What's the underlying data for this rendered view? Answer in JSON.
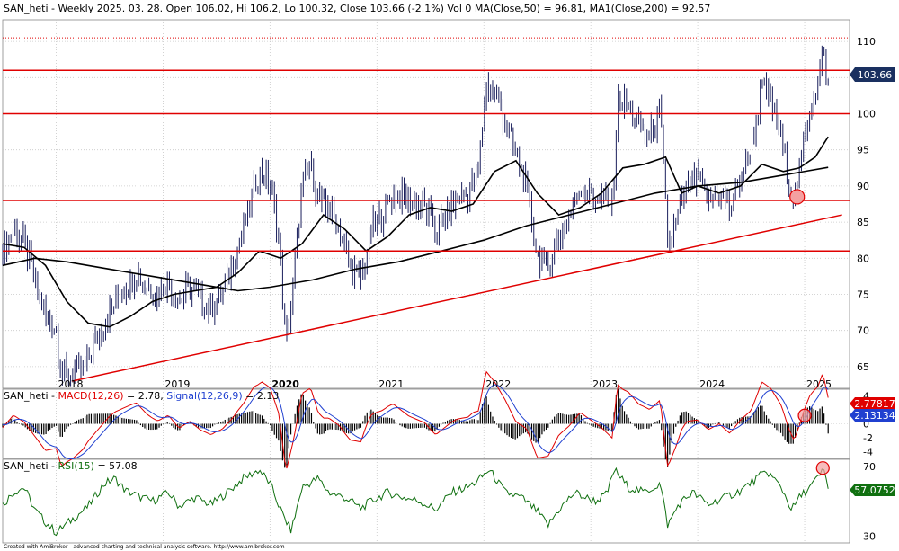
{
  "title": {
    "prefix": "SAN_heti - Weekly 2025. 03. 28. Open 106.02, Hi 106.2, Lo 100.32, Close 103.66 (-2.1%) Vol 0 ",
    "ma50": "MA(Close,50) = 96.81, ",
    "ma200": "MA1(Close,200) = 92.57"
  },
  "footer": "Created with AmiBroker - advanced charting and technical analysis software. http://www.amibroker.com",
  "colors": {
    "price": "#1a1f5c",
    "ma": "#000000",
    "hline": "#e00000",
    "trend": "#e00000",
    "macd": "#e00000",
    "signal": "#2040d0",
    "hist": "#000000",
    "rsi": "#107010",
    "grid": "#c8c8c8",
    "marker": "#f4a0a0"
  },
  "chart_data": [
    {
      "type": "line",
      "name": "price",
      "y_ticks": [
        65,
        70,
        75,
        80,
        85,
        90,
        95,
        100,
        105,
        110
      ],
      "x_ticks": [
        "2018",
        "2019",
        "2020",
        "2021",
        "2022",
        "2023",
        "2024",
        "2025"
      ],
      "last_value": "103.66",
      "x_start": 2017.5,
      "x_end": 2025.42,
      "ylim": [
        62,
        113
      ],
      "close_points": [
        [
          2017.5,
          81
        ],
        [
          2017.6,
          84
        ],
        [
          2017.7,
          82
        ],
        [
          2017.8,
          77
        ],
        [
          2017.9,
          72
        ],
        [
          2018.0,
          70
        ],
        [
          2018.05,
          64
        ],
        [
          2018.15,
          64
        ],
        [
          2018.25,
          65
        ],
        [
          2018.35,
          68
        ],
        [
          2018.45,
          71
        ],
        [
          2018.55,
          74
        ],
        [
          2018.65,
          76
        ],
        [
          2018.75,
          78
        ],
        [
          2018.85,
          76
        ],
        [
          2018.95,
          75
        ],
        [
          2019.05,
          77
        ],
        [
          2019.15,
          74
        ],
        [
          2019.25,
          76
        ],
        [
          2019.35,
          74
        ],
        [
          2019.45,
          73
        ],
        [
          2019.55,
          75
        ],
        [
          2019.65,
          79
        ],
        [
          2019.75,
          84
        ],
        [
          2019.85,
          90
        ],
        [
          2019.92,
          92
        ],
        [
          2020.0,
          90
        ],
        [
          2020.08,
          83
        ],
        [
          2020.15,
          68
        ],
        [
          2020.22,
          77
        ],
        [
          2020.3,
          90
        ],
        [
          2020.38,
          93
        ],
        [
          2020.45,
          88
        ],
        [
          2020.55,
          87
        ],
        [
          2020.65,
          84
        ],
        [
          2020.75,
          79
        ],
        [
          2020.85,
          77
        ],
        [
          2020.95,
          84
        ],
        [
          2021.05,
          86
        ],
        [
          2021.15,
          89
        ],
        [
          2021.3,
          88
        ],
        [
          2021.45,
          87
        ],
        [
          2021.55,
          84
        ],
        [
          2021.65,
          86
        ],
        [
          2021.75,
          88
        ],
        [
          2021.85,
          89
        ],
        [
          2021.95,
          92
        ],
        [
          2022.02,
          104
        ],
        [
          2022.1,
          103
        ],
        [
          2022.2,
          99
        ],
        [
          2022.3,
          94
        ],
        [
          2022.4,
          90
        ],
        [
          2022.5,
          80
        ],
        [
          2022.6,
          79
        ],
        [
          2022.7,
          83
        ],
        [
          2022.8,
          86
        ],
        [
          2022.9,
          90
        ],
        [
          2023.0,
          89
        ],
        [
          2023.1,
          88
        ],
        [
          2023.2,
          87
        ],
        [
          2023.25,
          102
        ],
        [
          2023.35,
          101
        ],
        [
          2023.45,
          98
        ],
        [
          2023.55,
          97
        ],
        [
          2023.65,
          100
        ],
        [
          2023.72,
          82
        ],
        [
          2023.8,
          85
        ],
        [
          2023.9,
          90
        ],
        [
          2024.0,
          91
        ],
        [
          2024.1,
          88
        ],
        [
          2024.2,
          89
        ],
        [
          2024.3,
          87
        ],
        [
          2024.4,
          91
        ],
        [
          2024.5,
          95
        ],
        [
          2024.6,
          104
        ],
        [
          2024.68,
          102
        ],
        [
          2024.78,
          97
        ],
        [
          2024.85,
          91
        ],
        [
          2024.9,
          88
        ],
        [
          2024.95,
          92
        ],
        [
          2025.0,
          97
        ],
        [
          2025.05,
          101
        ],
        [
          2025.12,
          104
        ],
        [
          2025.17,
          109
        ],
        [
          2025.22,
          103.66
        ]
      ],
      "ma50_points": [
        [
          2017.5,
          82
        ],
        [
          2017.7,
          81.5
        ],
        [
          2017.9,
          79
        ],
        [
          2018.1,
          74
        ],
        [
          2018.3,
          71
        ],
        [
          2018.5,
          70.5
        ],
        [
          2018.7,
          72
        ],
        [
          2018.9,
          74
        ],
        [
          2019.1,
          75
        ],
        [
          2019.3,
          75.5
        ],
        [
          2019.5,
          76
        ],
        [
          2019.7,
          78
        ],
        [
          2019.9,
          81
        ],
        [
          2020.1,
          80
        ],
        [
          2020.3,
          82
        ],
        [
          2020.5,
          86
        ],
        [
          2020.7,
          84
        ],
        [
          2020.9,
          81
        ],
        [
          2021.1,
          83
        ],
        [
          2021.3,
          86
        ],
        [
          2021.5,
          87
        ],
        [
          2021.7,
          86.5
        ],
        [
          2021.9,
          87.5
        ],
        [
          2022.1,
          92
        ],
        [
          2022.3,
          93.5
        ],
        [
          2022.5,
          89
        ],
        [
          2022.7,
          86
        ],
        [
          2022.9,
          87
        ],
        [
          2023.1,
          89
        ],
        [
          2023.3,
          92.5
        ],
        [
          2023.5,
          93
        ],
        [
          2023.7,
          94
        ],
        [
          2023.85,
          89
        ],
        [
          2024.0,
          90
        ],
        [
          2024.2,
          89
        ],
        [
          2024.4,
          90
        ],
        [
          2024.6,
          93
        ],
        [
          2024.8,
          92
        ],
        [
          2024.95,
          92.5
        ],
        [
          2025.1,
          94
        ],
        [
          2025.22,
          96.81
        ]
      ],
      "ma200_points": [
        [
          2017.5,
          79
        ],
        [
          2017.8,
          80
        ],
        [
          2018.1,
          79.5
        ],
        [
          2018.5,
          78.5
        ],
        [
          2018.9,
          77.5
        ],
        [
          2019.3,
          76.5
        ],
        [
          2019.7,
          75.5
        ],
        [
          2020.0,
          76
        ],
        [
          2020.4,
          77
        ],
        [
          2020.8,
          78.5
        ],
        [
          2021.2,
          79.5
        ],
        [
          2021.6,
          81
        ],
        [
          2022.0,
          82.5
        ],
        [
          2022.4,
          84.5
        ],
        [
          2022.8,
          86
        ],
        [
          2023.2,
          87.5
        ],
        [
          2023.6,
          89
        ],
        [
          2024.0,
          90
        ],
        [
          2024.4,
          90.5
        ],
        [
          2024.8,
          91.5
        ],
        [
          2025.22,
          92.57
        ]
      ],
      "horizontal_lines": [
        106,
        100,
        88,
        81
      ],
      "dotted_line": 110.5,
      "trend_line": [
        [
          2018.15,
          63
        ],
        [
          2025.35,
          86
        ]
      ]
    },
    {
      "type": "line",
      "name": "macd_panel",
      "label": {
        "prefix": "SAN_heti - ",
        "macd": "MACD(12,26)",
        "macd_value": " = 2.78, ",
        "signal": "Signal(12,26,9)",
        "signal_value": " = 2.13"
      },
      "y_ticks": [
        4,
        2,
        0,
        -2,
        -4
      ],
      "ylim": [
        -5,
        5
      ],
      "macd_value": "2.77817",
      "signal_value": "2.13134"
    },
    {
      "type": "line",
      "name": "rsi_panel",
      "label": {
        "prefix": "SAN_heti - ",
        "rsi": "RSI(15)",
        "value": " = 57.08"
      },
      "y_ticks": [
        70,
        30
      ],
      "ylim": [
        26,
        74
      ],
      "last_value": "57.0752",
      "points": [
        [
          2017.5,
          48
        ],
        [
          2017.6,
          55
        ],
        [
          2017.7,
          58
        ],
        [
          2017.8,
          45
        ],
        [
          2017.9,
          38
        ],
        [
          2018.0,
          32
        ],
        [
          2018.08,
          36
        ],
        [
          2018.2,
          42
        ],
        [
          2018.3,
          47
        ],
        [
          2018.45,
          60
        ],
        [
          2018.55,
          63
        ],
        [
          2018.65,
          56
        ],
        [
          2018.8,
          52
        ],
        [
          2018.9,
          50
        ],
        [
          2019.05,
          55
        ],
        [
          2019.15,
          47
        ],
        [
          2019.3,
          52
        ],
        [
          2019.45,
          48
        ],
        [
          2019.6,
          55
        ],
        [
          2019.75,
          63
        ],
        [
          2019.9,
          68
        ],
        [
          2020.0,
          60
        ],
        [
          2020.12,
          42
        ],
        [
          2020.2,
          33
        ],
        [
          2020.3,
          58
        ],
        [
          2020.45,
          63
        ],
        [
          2020.55,
          55
        ],
        [
          2020.7,
          52
        ],
        [
          2020.85,
          46
        ],
        [
          2020.95,
          50
        ],
        [
          2021.1,
          55
        ],
        [
          2021.25,
          52
        ],
        [
          2021.4,
          50
        ],
        [
          2021.55,
          45
        ],
        [
          2021.7,
          55
        ],
        [
          2021.85,
          58
        ],
        [
          2021.95,
          62
        ],
        [
          2022.05,
          68
        ],
        [
          2022.2,
          55
        ],
        [
          2022.35,
          52
        ],
        [
          2022.5,
          44
        ],
        [
          2022.6,
          36
        ],
        [
          2022.7,
          45
        ],
        [
          2022.85,
          55
        ],
        [
          2022.95,
          52
        ],
        [
          2023.05,
          50
        ],
        [
          2023.15,
          54
        ],
        [
          2023.22,
          68
        ],
        [
          2023.35,
          58
        ],
        [
          2023.5,
          55
        ],
        [
          2023.65,
          60
        ],
        [
          2023.72,
          36
        ],
        [
          2023.82,
          48
        ],
        [
          2023.95,
          55
        ],
        [
          2024.1,
          48
        ],
        [
          2024.25,
          52
        ],
        [
          2024.4,
          56
        ],
        [
          2024.55,
          63
        ],
        [
          2024.65,
          67
        ],
        [
          2024.78,
          58
        ],
        [
          2024.88,
          45
        ],
        [
          2024.95,
          52
        ],
        [
          2025.05,
          58
        ],
        [
          2025.12,
          63
        ],
        [
          2025.18,
          68
        ],
        [
          2025.22,
          57.08
        ]
      ]
    }
  ]
}
